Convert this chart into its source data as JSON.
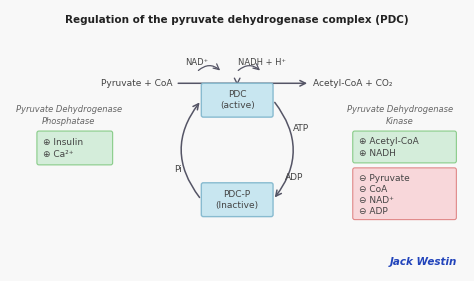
{
  "title": "Regulation of the pyruvate dehydrogenase complex (PDC)",
  "title_fontsize": 7.5,
  "bg_color": "#f8f8f8",
  "pdc_label": "PDC\n(active)",
  "pdcp_label": "PDC-P\n(Inactive)",
  "box_color_face": "#c8e6f0",
  "box_color_edge": "#88bbd0",
  "left_title": "Pyruvate Dehydrogenase\nPhosphatase",
  "right_title": "Pyruvate Dehydrogenase\nKinase",
  "left_green_items": [
    "⊕ Insulin",
    "⊕ Ca²⁺"
  ],
  "right_green_items": [
    "⊕ Acetyl-CoA",
    "⊕ NADH"
  ],
  "right_red_items": [
    "⊖ Pyruvate",
    "⊖ CoA",
    "⊖ NAD⁺",
    "⊖ ADP"
  ],
  "green_face": "#d4edda",
  "green_edge": "#88cc88",
  "red_face": "#f8d7da",
  "red_edge": "#e08888",
  "reaction_left": "Pyruvate + CoA",
  "reaction_right": "Acetyl-CoA + CO₂",
  "nad_label": "NAD⁺",
  "nadh_label": "NADH + H⁺",
  "atp_label": "ATP",
  "pi_label": "Pi",
  "adp_label": "ADP",
  "watermark": "Jack Westin",
  "watermark_color": "#2244bb",
  "arrow_color": "#555566",
  "text_color": "#444444",
  "italic_color": "#666666"
}
